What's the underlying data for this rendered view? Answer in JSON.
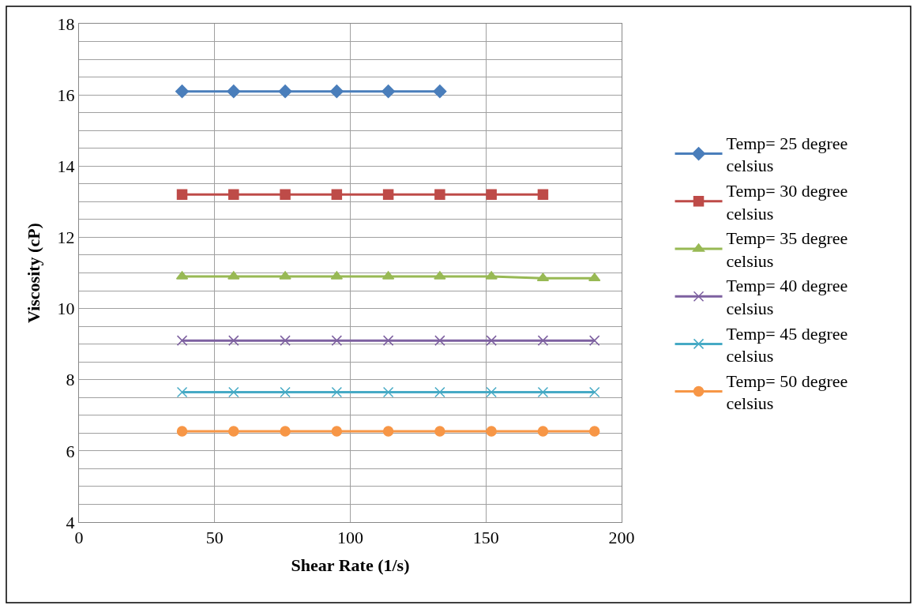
{
  "chart_data": {
    "type": "line",
    "xlabel": "Shear Rate (1/s)",
    "ylabel": "Viscosity (cP)",
    "x": [
      38,
      57,
      76,
      95,
      114,
      133,
      152,
      171,
      190
    ],
    "xlim": [
      0,
      200
    ],
    "xticks": [
      0,
      50,
      100,
      150,
      200
    ],
    "ylim": [
      4,
      18
    ],
    "yticks": [
      4,
      {
        "value": 4.5,
        "label": null
      },
      {
        "value": 5,
        "label": null
      },
      {
        "value": 5.5,
        "label": null
      },
      6,
      {
        "value": 6.5,
        "label": null
      },
      {
        "value": 7,
        "label": null
      },
      {
        "value": 7.5,
        "label": null
      },
      8,
      {
        "value": 8.5,
        "label": null
      },
      {
        "value": 9,
        "label": null
      },
      {
        "value": 9.5,
        "label": null
      },
      10,
      {
        "value": 10.5,
        "label": null
      },
      {
        "value": 11,
        "label": null
      },
      {
        "value": 11.5,
        "label": null
      },
      12,
      {
        "value": 12.5,
        "label": null
      },
      {
        "value": 13,
        "label": null
      },
      {
        "value": 13.5,
        "label": null
      },
      14,
      {
        "value": 14.5,
        "label": null
      },
      {
        "value": 15,
        "label": null
      },
      {
        "value": 15.5,
        "label": null
      },
      16,
      {
        "value": 16.5,
        "label": null
      },
      {
        "value": 17,
        "label": null
      },
      {
        "value": 17.5,
        "label": null
      },
      18
    ],
    "grid": true,
    "legend": "right",
    "line_style": "solid",
    "series": [
      {
        "name": "Temp= 25 degree celsius",
        "color": "#4a7ebb",
        "marker": "diamond",
        "values": [
          16.1,
          16.1,
          16.1,
          16.1,
          16.1,
          16.1,
          null,
          null,
          null
        ]
      },
      {
        "name": "Temp= 30 degree celsius",
        "color": "#be4b48",
        "marker": "square",
        "values": [
          13.2,
          13.2,
          13.2,
          13.2,
          13.2,
          13.2,
          13.2,
          13.2,
          null
        ]
      },
      {
        "name": "Temp= 35 degree celsius",
        "color": "#98b954",
        "marker": "triangle",
        "values": [
          10.9,
          10.9,
          10.9,
          10.9,
          10.9,
          10.9,
          10.9,
          10.85,
          10.85
        ]
      },
      {
        "name": "Temp= 40 degree celsius",
        "color": "#7d60a0",
        "marker": "cross",
        "values": [
          9.1,
          9.1,
          9.1,
          9.1,
          9.1,
          9.1,
          9.1,
          9.1,
          9.1
        ]
      },
      {
        "name": "Temp= 45 degree celsius",
        "color": "#46aac5",
        "marker": "cross",
        "values": [
          7.65,
          7.65,
          7.65,
          7.65,
          7.65,
          7.65,
          7.65,
          7.65,
          7.65
        ]
      },
      {
        "name": "Temp= 50 degree celsius",
        "color": "#f79646",
        "marker": "circle",
        "values": [
          6.55,
          6.55,
          6.55,
          6.55,
          6.55,
          6.55,
          6.55,
          6.55,
          6.55
        ]
      }
    ]
  }
}
